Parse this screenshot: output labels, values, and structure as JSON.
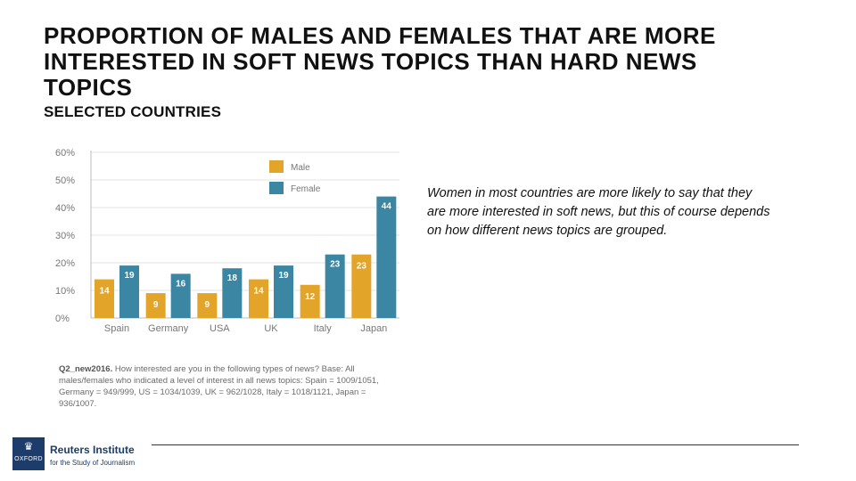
{
  "title": "PROPORTION OF MALES AND FEMALES THAT ARE MORE INTERESTED IN SOFT NEWS TOPICS THAN HARD NEWS TOPICS",
  "subtitle": "SELECTED COUNTRIES",
  "annotation": "Women in most countries are more likely to say that they are more interested in soft news, but this of course depends on how different news topics are grouped.",
  "note": {
    "question": "Q2_new2016.",
    "text": "How interested are you in the following types of news? Base: All males/females who indicated a level of interest in all news topics: Spain = 1009/1051, Germany = 949/999, US = 1034/1039, UK = 962/1028, Italy = 1018/1121, Japan = 936/1007."
  },
  "logo": {
    "crest_text": "OXFORD",
    "name": "Reuters Institute",
    "subtitle": "for the Study of Journalism"
  },
  "colors": {
    "male": "#E3A42A",
    "female": "#3A86A3",
    "grid": "#e3e3e3",
    "axis_text": "#777777",
    "brand": "#1c3d6b"
  },
  "chart_data": {
    "type": "bar",
    "categories": [
      "Spain",
      "Germany",
      "USA",
      "UK",
      "Italy",
      "Japan"
    ],
    "series": [
      {
        "name": "Male",
        "values": [
          14,
          9,
          9,
          14,
          12,
          23
        ]
      },
      {
        "name": "Female",
        "values": [
          19,
          16,
          18,
          19,
          23,
          44
        ]
      }
    ],
    "ylim": [
      0,
      60
    ],
    "yticks": [
      "0%",
      "10%",
      "20%",
      "30%",
      "40%",
      "50%",
      "60%"
    ],
    "grid": true,
    "legend_position": "top-left"
  }
}
